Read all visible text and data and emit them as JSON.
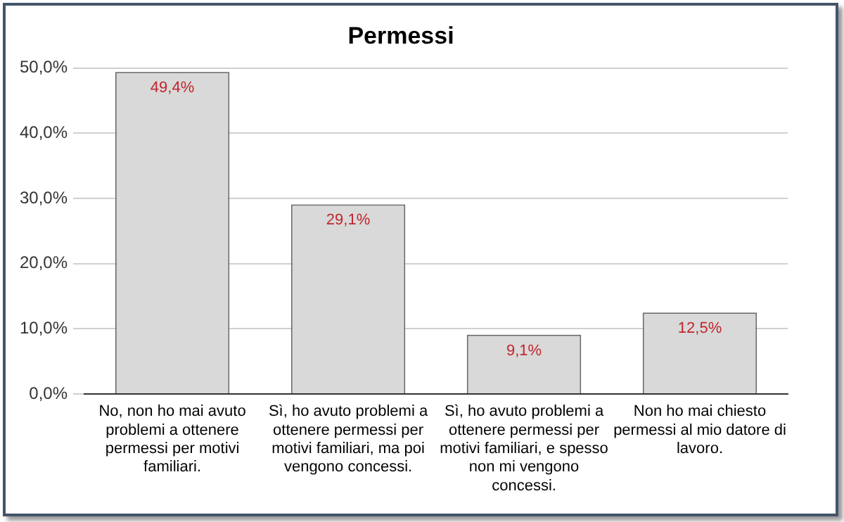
{
  "chart_data": {
    "type": "bar",
    "title": "Permessi",
    "categories": [
      "No, non ho mai avuto problemi a ottenere permessi per motivi familiari.",
      "Sì, ho avuto problemi a ottenere permessi per motivi familiari, ma poi vengono concessi.",
      "Sì, ho avuto problemi a ottenere permessi per motivi familiari, e spesso non mi vengono concessi.",
      "Non ho mai chiesto permessi al mio datore di lavoro."
    ],
    "values": [
      49.4,
      29.1,
      9.1,
      12.5
    ],
    "value_labels": [
      "49,4%",
      "29,1%",
      "9,1%",
      "12,5%"
    ],
    "color": "#d9d9d9",
    "ylim": [
      0,
      50
    ],
    "yticks": [
      {
        "value": 0,
        "label": "0,0%"
      },
      {
        "value": 10,
        "label": "10,0%"
      },
      {
        "value": 20,
        "label": "20,0%"
      },
      {
        "value": 30,
        "label": "30,0%"
      },
      {
        "value": 40,
        "label": "40,0%"
      },
      {
        "value": 50,
        "label": "50,0%"
      }
    ],
    "grid": "y",
    "legend": false
  }
}
